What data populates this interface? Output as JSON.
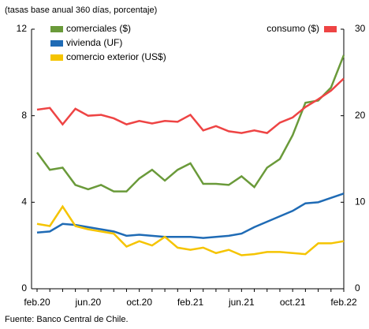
{
  "chart_data": {
    "type": "line",
    "subtitle": "(tasas base anual 360 días, porcentaje)",
    "source": "Fuente: Banco Central de Chile.",
    "categories": [
      "feb.20",
      null,
      null,
      null,
      "jun.20",
      null,
      null,
      null,
      "oct.20",
      null,
      null,
      null,
      "feb.21",
      null,
      null,
      null,
      "jun.21",
      null,
      null,
      null,
      "oct.21",
      null,
      null,
      null,
      "feb.22"
    ],
    "ylim": [
      0,
      12
    ],
    "yticks": [
      0,
      4,
      8,
      12
    ],
    "y2lim": [
      0,
      30
    ],
    "y2ticks": [
      0,
      10,
      20,
      30
    ],
    "series": [
      {
        "name": "comerciales ($)",
        "color": "#6a9a3a",
        "values": [
          6.3,
          5.5,
          5.6,
          4.8,
          4.6,
          4.8,
          4.5,
          4.5,
          5.1,
          5.5,
          5.0,
          5.5,
          5.8,
          4.85,
          4.85,
          4.8,
          5.2,
          4.7,
          5.6,
          6.0,
          7.1,
          8.6,
          8.7,
          9.3,
          10.8
        ]
      },
      {
        "name": "vivienda (UF)",
        "color": "#1f6bb5",
        "values": [
          2.6,
          2.65,
          3.0,
          2.95,
          2.85,
          2.75,
          2.65,
          2.45,
          2.5,
          2.45,
          2.4,
          2.4,
          2.4,
          2.35,
          2.4,
          2.45,
          2.55,
          2.85,
          3.1,
          3.35,
          3.6,
          3.95,
          4.0,
          4.2,
          4.4
        ]
      },
      {
        "name": "comercio exterior (US$)",
        "color": "#f5c400",
        "values": [
          3.0,
          2.9,
          3.8,
          2.9,
          2.75,
          2.65,
          2.55,
          1.95,
          2.2,
          2.0,
          2.4,
          1.9,
          1.8,
          1.9,
          1.65,
          1.8,
          1.55,
          1.6,
          1.7,
          1.7,
          1.65,
          1.6,
          2.1,
          2.1,
          2.2
        ]
      },
      {
        "name": "consumo ($)",
        "color": "#ee4444",
        "axis": "y2",
        "values": [
          20.7,
          20.9,
          19.0,
          20.8,
          20.0,
          20.1,
          19.7,
          19.0,
          19.4,
          19.1,
          19.4,
          19.3,
          20.1,
          18.3,
          18.8,
          18.2,
          18.0,
          18.3,
          18.0,
          19.2,
          19.8,
          21.0,
          21.9,
          22.9,
          24.3
        ]
      }
    ]
  }
}
